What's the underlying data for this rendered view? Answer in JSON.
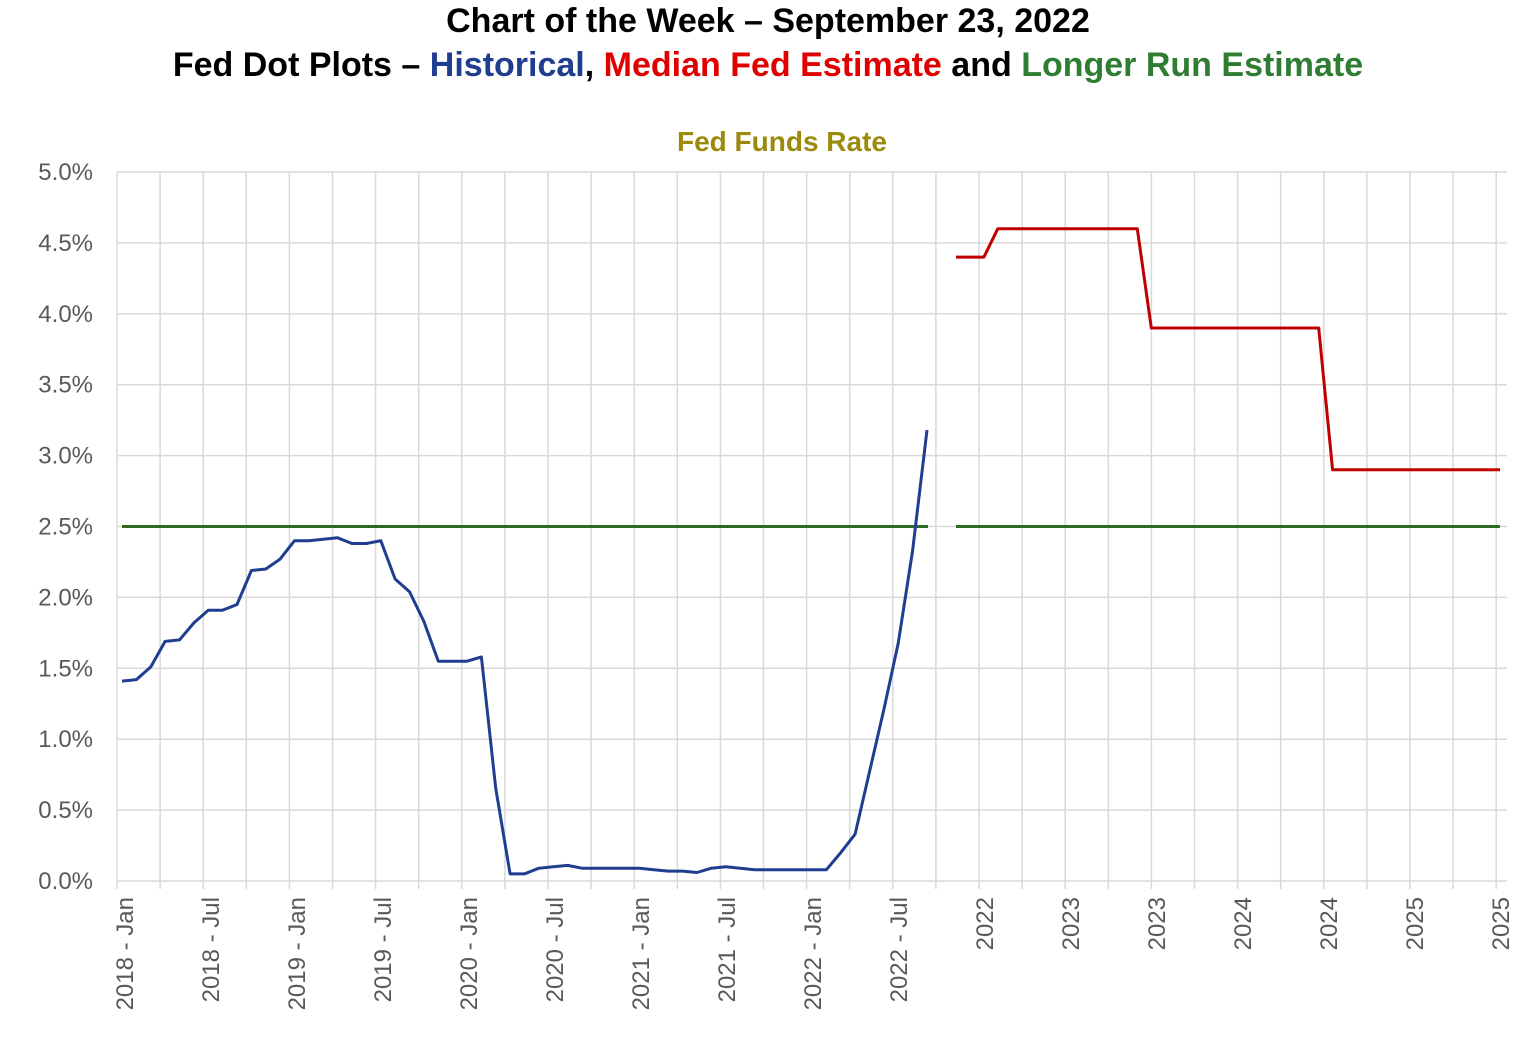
{
  "title": {
    "line1": "Chart of the Week – September 23, 2022",
    "line2_prefix": "Fed Dot Plots – ",
    "line2_historical": "Historical",
    "line2_sep": ", ",
    "line2_median": "Median Fed Estimate",
    "line2_and": " and ",
    "line2_longer": "Longer Run Estimate"
  },
  "colors": {
    "historical": "#1F3E8F",
    "median": "#C00000",
    "longer_run": "#2E6B1F",
    "subtitle": "#9C8A0A",
    "grid": "#D9D9D9",
    "axis_text": "#595959"
  },
  "chart_data": {
    "type": "line",
    "title": "Fed Funds Rate",
    "ylim": [
      0,
      5.0
    ],
    "y_ticks": [
      "0.0%",
      "0.5%",
      "1.0%",
      "1.5%",
      "2.0%",
      "2.5%",
      "3.0%",
      "3.5%",
      "4.0%",
      "4.5%",
      "5.0%"
    ],
    "grid": true,
    "x_labels": [
      "2018 - Jan",
      "2018 - Jul",
      "2019 - Jan",
      "2019 - Jul",
      "2020 - Jan",
      "2020 - Jul",
      "2021 - Jan",
      "2021 - Jul",
      "2022 - Jan",
      "2022 - Jul",
      "2022",
      "2023",
      "2023",
      "2024",
      "2024",
      "2025",
      "2025"
    ],
    "series": [
      {
        "name": "Historical",
        "values": [
          1.41,
          1.42,
          1.51,
          1.69,
          1.7,
          1.82,
          1.91,
          1.91,
          1.95,
          2.19,
          2.2,
          2.27,
          2.4,
          2.4,
          2.41,
          2.42,
          2.38,
          2.38,
          2.4,
          2.13,
          2.04,
          1.83,
          1.55,
          1.55,
          1.55,
          1.58,
          0.65,
          0.05,
          0.05,
          0.09,
          0.1,
          0.11,
          0.09,
          0.09,
          0.09,
          0.09,
          0.09,
          0.08,
          0.07,
          0.07,
          0.06,
          0.09,
          0.1,
          0.09,
          0.08,
          0.08,
          0.08,
          0.08,
          0.08,
          0.08,
          0.2,
          0.33,
          0.77,
          1.21,
          1.68,
          2.33,
          3.18
        ]
      },
      {
        "name": "Median Fed Estimate",
        "values": [
          4.4,
          4.4,
          4.4,
          4.6,
          4.6,
          4.6,
          4.6,
          4.6,
          4.6,
          4.6,
          4.6,
          4.6,
          4.6,
          4.6,
          3.9,
          3.9,
          3.9,
          3.9,
          3.9,
          3.9,
          3.9,
          3.9,
          3.9,
          3.9,
          3.9,
          3.9,
          3.9,
          2.9,
          2.9,
          2.9,
          2.9,
          2.9,
          2.9,
          2.9,
          2.9,
          2.9,
          2.9,
          2.9,
          2.9,
          2.9
        ]
      },
      {
        "name": "Longer Run Estimate",
        "values": [
          2.5,
          2.5
        ]
      }
    ]
  }
}
